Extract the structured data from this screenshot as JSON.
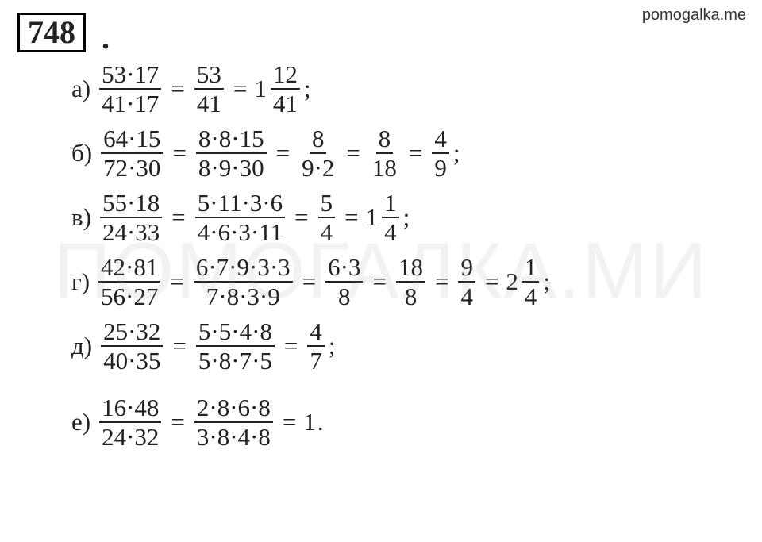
{
  "site": "pomogalka.me",
  "watermark": "ПОМОГАЛКА.МИ",
  "problem_number": "748",
  "text_color": "#222222",
  "background_color": "#ffffff",
  "watermark_color": "rgba(150,150,160,0.12)",
  "font_main": "Cambria Math, Times New Roman, serif",
  "font_size_main_pt": 23,
  "font_size_problem_pt": 30,
  "rows": {
    "a": {
      "label": "а)",
      "steps": [
        {
          "type": "frac",
          "num": "53·17",
          "den": "41·17"
        },
        {
          "type": "eq"
        },
        {
          "type": "frac",
          "num": "53",
          "den": "41"
        },
        {
          "type": "eq"
        },
        {
          "type": "mixed",
          "whole": "1",
          "num": "12",
          "den": "41"
        }
      ],
      "terminator": ";"
    },
    "b": {
      "label": "б)",
      "steps": [
        {
          "type": "frac",
          "num": "64·15",
          "den": "72·30"
        },
        {
          "type": "eq"
        },
        {
          "type": "frac",
          "num": "8·8·15",
          "den": "8·9·30"
        },
        {
          "type": "eq"
        },
        {
          "type": "frac",
          "num": "8",
          "den": "9·2"
        },
        {
          "type": "eq"
        },
        {
          "type": "frac",
          "num": "8",
          "den": "18"
        },
        {
          "type": "eq"
        },
        {
          "type": "frac",
          "num": "4",
          "den": "9"
        }
      ],
      "terminator": ";"
    },
    "v": {
      "label": "в)",
      "steps": [
        {
          "type": "frac",
          "num": "55·18",
          "den": "24·33"
        },
        {
          "type": "eq"
        },
        {
          "type": "frac",
          "num": "5·11·3·6",
          "den": "4·6·3·11"
        },
        {
          "type": "eq"
        },
        {
          "type": "frac",
          "num": "5",
          "den": "4"
        },
        {
          "type": "eq"
        },
        {
          "type": "mixed",
          "whole": "1",
          "num": "1",
          "den": "4"
        }
      ],
      "terminator": ";"
    },
    "g": {
      "label": "г)",
      "steps": [
        {
          "type": "frac",
          "num": "42·81",
          "den": "56·27"
        },
        {
          "type": "eq"
        },
        {
          "type": "frac",
          "num": "6·7·9·3·3",
          "den": "7·8·3·9"
        },
        {
          "type": "eq"
        },
        {
          "type": "frac",
          "num": "6·3",
          "den": "8"
        },
        {
          "type": "eq"
        },
        {
          "type": "frac",
          "num": "18",
          "den": "8"
        },
        {
          "type": "eq"
        },
        {
          "type": "frac",
          "num": "9",
          "den": "4"
        },
        {
          "type": "eq"
        },
        {
          "type": "mixed",
          "whole": "2",
          "num": "1",
          "den": "4"
        }
      ],
      "terminator": ";"
    },
    "d": {
      "label": "д)",
      "steps": [
        {
          "type": "frac",
          "num": "25·32",
          "den": "40·35"
        },
        {
          "type": "eq"
        },
        {
          "type": "frac",
          "num": "5·5·4·8",
          "den": "5·8·7·5"
        },
        {
          "type": "eq"
        },
        {
          "type": "frac",
          "num": "4",
          "den": "7"
        }
      ],
      "terminator": ";"
    },
    "e": {
      "label": "е)",
      "steps": [
        {
          "type": "frac",
          "num": "16·48",
          "den": "24·32"
        },
        {
          "type": "eq"
        },
        {
          "type": "frac",
          "num": "2·8·6·8",
          "den": "3·8·4·8"
        },
        {
          "type": "eq"
        },
        {
          "type": "plain",
          "text": "1"
        }
      ],
      "terminator": "."
    }
  },
  "row_order": [
    "a",
    "b",
    "v",
    "g",
    "d",
    "e"
  ],
  "last_row_extra_margin": 28
}
